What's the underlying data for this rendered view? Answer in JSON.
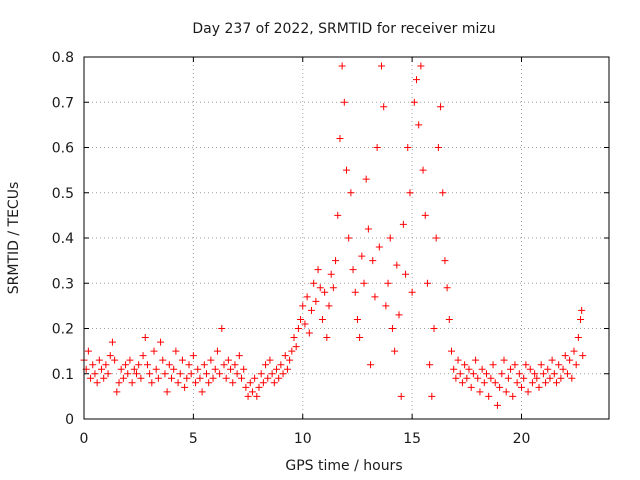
{
  "chart_data": {
    "type": "scatter",
    "title": "Day 237 of 2022, SRMTID for receiver mizu",
    "xlabel": "GPS time / hours",
    "ylabel": "SRMTID / TECUs",
    "xlim": [
      0,
      24
    ],
    "ylim": [
      0,
      0.8
    ],
    "xticks": [
      0,
      5,
      10,
      15,
      20
    ],
    "xtick_labels": [
      "0",
      "5",
      "10",
      "15",
      "20"
    ],
    "yticks": [
      0,
      0.1,
      0.2,
      0.3,
      0.4,
      0.5,
      0.6,
      0.7,
      0.8
    ],
    "ytick_labels": [
      "0",
      "0.1",
      "0.2",
      "0.3",
      "0.4",
      "0.5",
      "0.6",
      "0.7",
      "0.8"
    ],
    "grid": true,
    "marker": "+",
    "color": "#ff0000",
    "series": [
      {
        "name": "SRMTID",
        "points": [
          [
            0.0,
            0.13
          ],
          [
            0.1,
            0.11
          ],
          [
            0.2,
            0.15
          ],
          [
            0.3,
            0.09
          ],
          [
            0.4,
            0.12
          ],
          [
            0.5,
            0.1
          ],
          [
            0.6,
            0.08
          ],
          [
            0.7,
            0.13
          ],
          [
            0.8,
            0.11
          ],
          [
            0.9,
            0.09
          ],
          [
            1.0,
            0.12
          ],
          [
            1.1,
            0.1
          ],
          [
            1.2,
            0.14
          ],
          [
            1.3,
            0.17
          ],
          [
            1.4,
            0.13
          ],
          [
            1.5,
            0.06
          ],
          [
            1.6,
            0.08
          ],
          [
            1.7,
            0.11
          ],
          [
            1.8,
            0.09
          ],
          [
            1.9,
            0.12
          ],
          [
            2.0,
            0.1
          ],
          [
            2.1,
            0.13
          ],
          [
            2.2,
            0.08
          ],
          [
            2.3,
            0.11
          ],
          [
            2.4,
            0.1
          ],
          [
            2.5,
            0.12
          ],
          [
            2.6,
            0.09
          ],
          [
            2.7,
            0.14
          ],
          [
            2.8,
            0.18
          ],
          [
            2.9,
            0.12
          ],
          [
            3.0,
            0.1
          ],
          [
            3.1,
            0.08
          ],
          [
            3.2,
            0.15
          ],
          [
            3.3,
            0.11
          ],
          [
            3.4,
            0.09
          ],
          [
            3.5,
            0.17
          ],
          [
            3.6,
            0.13
          ],
          [
            3.7,
            0.1
          ],
          [
            3.8,
            0.06
          ],
          [
            3.9,
            0.12
          ],
          [
            4.0,
            0.09
          ],
          [
            4.1,
            0.11
          ],
          [
            4.2,
            0.15
          ],
          [
            4.3,
            0.08
          ],
          [
            4.4,
            0.1
          ],
          [
            4.5,
            0.13
          ],
          [
            4.6,
            0.07
          ],
          [
            4.7,
            0.09
          ],
          [
            4.8,
            0.12
          ],
          [
            4.9,
            0.1
          ],
          [
            5.0,
            0.14
          ],
          [
            5.1,
            0.08
          ],
          [
            5.2,
            0.11
          ],
          [
            5.3,
            0.09
          ],
          [
            5.4,
            0.06
          ],
          [
            5.5,
            0.12
          ],
          [
            5.6,
            0.1
          ],
          [
            5.7,
            0.08
          ],
          [
            5.8,
            0.13
          ],
          [
            5.9,
            0.09
          ],
          [
            6.0,
            0.11
          ],
          [
            6.1,
            0.15
          ],
          [
            6.2,
            0.1
          ],
          [
            6.3,
            0.2
          ],
          [
            6.4,
            0.12
          ],
          [
            6.5,
            0.09
          ],
          [
            6.6,
            0.13
          ],
          [
            6.7,
            0.11
          ],
          [
            6.8,
            0.08
          ],
          [
            6.9,
            0.12
          ],
          [
            7.0,
            0.1
          ],
          [
            7.1,
            0.14
          ],
          [
            7.2,
            0.09
          ],
          [
            7.3,
            0.11
          ],
          [
            7.4,
            0.07
          ],
          [
            7.5,
            0.05
          ],
          [
            7.6,
            0.08
          ],
          [
            7.7,
            0.06
          ],
          [
            7.8,
            0.09
          ],
          [
            7.9,
            0.05
          ],
          [
            8.0,
            0.07
          ],
          [
            8.1,
            0.1
          ],
          [
            8.2,
            0.08
          ],
          [
            8.3,
            0.12
          ],
          [
            8.4,
            0.09
          ],
          [
            8.5,
            0.13
          ],
          [
            8.6,
            0.1
          ],
          [
            8.7,
            0.08
          ],
          [
            8.8,
            0.11
          ],
          [
            8.9,
            0.09
          ],
          [
            9.0,
            0.12
          ],
          [
            9.1,
            0.1
          ],
          [
            9.2,
            0.14
          ],
          [
            9.3,
            0.11
          ],
          [
            9.4,
            0.13
          ],
          [
            9.5,
            0.15
          ],
          [
            9.6,
            0.18
          ],
          [
            9.7,
            0.16
          ],
          [
            9.8,
            0.2
          ],
          [
            9.9,
            0.22
          ],
          [
            10.0,
            0.25
          ],
          [
            10.1,
            0.21
          ],
          [
            10.2,
            0.27
          ],
          [
            10.3,
            0.19
          ],
          [
            10.4,
            0.24
          ],
          [
            10.5,
            0.3
          ],
          [
            10.6,
            0.26
          ],
          [
            10.7,
            0.33
          ],
          [
            10.8,
            0.29
          ],
          [
            10.9,
            0.22
          ],
          [
            11.0,
            0.28
          ],
          [
            11.1,
            0.18
          ],
          [
            11.2,
            0.25
          ],
          [
            11.3,
            0.32
          ],
          [
            11.4,
            0.29
          ],
          [
            11.5,
            0.35
          ],
          [
            11.6,
            0.45
          ],
          [
            11.7,
            0.62
          ],
          [
            11.8,
            0.78
          ],
          [
            11.9,
            0.7
          ],
          [
            12.0,
            0.55
          ],
          [
            12.1,
            0.4
          ],
          [
            12.2,
            0.5
          ],
          [
            12.3,
            0.33
          ],
          [
            12.4,
            0.28
          ],
          [
            12.5,
            0.22
          ],
          [
            12.6,
            0.18
          ],
          [
            12.7,
            0.36
          ],
          [
            12.8,
            0.3
          ],
          [
            12.9,
            0.53
          ],
          [
            13.0,
            0.42
          ],
          [
            13.1,
            0.12
          ],
          [
            13.2,
            0.35
          ],
          [
            13.3,
            0.27
          ],
          [
            13.4,
            0.6
          ],
          [
            13.5,
            0.38
          ],
          [
            13.6,
            0.78
          ],
          [
            13.7,
            0.69
          ],
          [
            13.8,
            0.25
          ],
          [
            13.9,
            0.3
          ],
          [
            14.0,
            0.4
          ],
          [
            14.1,
            0.2
          ],
          [
            14.2,
            0.15
          ],
          [
            14.3,
            0.34
          ],
          [
            14.4,
            0.23
          ],
          [
            14.5,
            0.05
          ],
          [
            14.6,
            0.43
          ],
          [
            14.7,
            0.32
          ],
          [
            14.8,
            0.6
          ],
          [
            14.9,
            0.5
          ],
          [
            15.0,
            0.28
          ],
          [
            15.1,
            0.7
          ],
          [
            15.2,
            0.75
          ],
          [
            15.3,
            0.65
          ],
          [
            15.4,
            0.78
          ],
          [
            15.5,
            0.55
          ],
          [
            15.6,
            0.45
          ],
          [
            15.7,
            0.3
          ],
          [
            15.8,
            0.12
          ],
          [
            15.9,
            0.05
          ],
          [
            16.0,
            0.2
          ],
          [
            16.1,
            0.4
          ],
          [
            16.2,
            0.6
          ],
          [
            16.3,
            0.69
          ],
          [
            16.4,
            0.5
          ],
          [
            16.5,
            0.35
          ],
          [
            16.6,
            0.29
          ],
          [
            16.7,
            0.22
          ],
          [
            16.8,
            0.15
          ],
          [
            16.9,
            0.11
          ],
          [
            17.0,
            0.09
          ],
          [
            17.1,
            0.13
          ],
          [
            17.2,
            0.1
          ],
          [
            17.3,
            0.08
          ],
          [
            17.4,
            0.12
          ],
          [
            17.5,
            0.09
          ],
          [
            17.6,
            0.11
          ],
          [
            17.7,
            0.07
          ],
          [
            17.8,
            0.1
          ],
          [
            17.9,
            0.13
          ],
          [
            18.0,
            0.09
          ],
          [
            18.1,
            0.06
          ],
          [
            18.2,
            0.11
          ],
          [
            18.3,
            0.08
          ],
          [
            18.4,
            0.1
          ],
          [
            18.5,
            0.05
          ],
          [
            18.6,
            0.09
          ],
          [
            18.7,
            0.12
          ],
          [
            18.8,
            0.08
          ],
          [
            18.9,
            0.03
          ],
          [
            19.0,
            0.07
          ],
          [
            19.1,
            0.1
          ],
          [
            19.2,
            0.13
          ],
          [
            19.3,
            0.06
          ],
          [
            19.4,
            0.09
          ],
          [
            19.5,
            0.11
          ],
          [
            19.6,
            0.05
          ],
          [
            19.7,
            0.12
          ],
          [
            19.8,
            0.08
          ],
          [
            19.9,
            0.1
          ],
          [
            20.0,
            0.07
          ],
          [
            20.1,
            0.09
          ],
          [
            20.2,
            0.12
          ],
          [
            20.3,
            0.06
          ],
          [
            20.4,
            0.11
          ],
          [
            20.5,
            0.08
          ],
          [
            20.6,
            0.1
          ],
          [
            20.7,
            0.09
          ],
          [
            20.8,
            0.07
          ],
          [
            20.9,
            0.12
          ],
          [
            21.0,
            0.1
          ],
          [
            21.1,
            0.08
          ],
          [
            21.2,
            0.11
          ],
          [
            21.3,
            0.09
          ],
          [
            21.4,
            0.13
          ],
          [
            21.5,
            0.1
          ],
          [
            21.6,
            0.08
          ],
          [
            21.7,
            0.12
          ],
          [
            21.8,
            0.09
          ],
          [
            21.9,
            0.11
          ],
          [
            22.0,
            0.14
          ],
          [
            22.1,
            0.1
          ],
          [
            22.2,
            0.13
          ],
          [
            22.3,
            0.09
          ],
          [
            22.4,
            0.15
          ],
          [
            22.5,
            0.12
          ],
          [
            22.6,
            0.18
          ],
          [
            22.7,
            0.22
          ],
          [
            22.75,
            0.24
          ],
          [
            22.8,
            0.14
          ]
        ]
      }
    ]
  }
}
